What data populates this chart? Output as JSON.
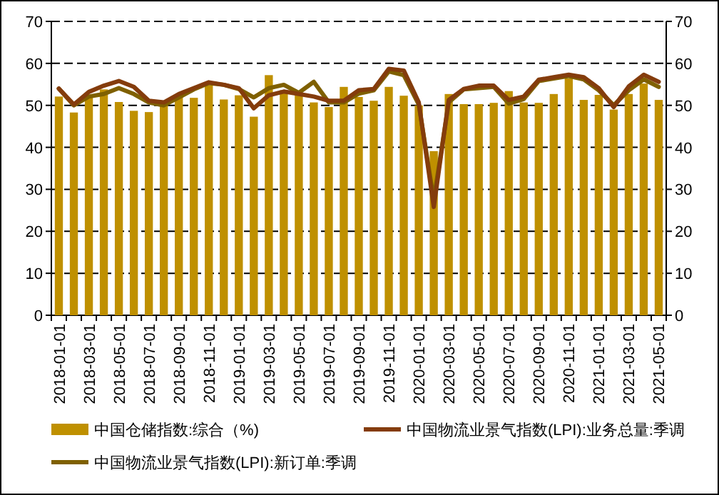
{
  "chart_data": {
    "type": "bar",
    "categories": [
      "2018-01-01",
      null,
      "2018-03-01",
      null,
      "2018-05-01",
      null,
      "2018-07-01",
      null,
      "2018-09-01",
      null,
      "2018-11-01",
      null,
      "2019-01-01",
      null,
      "2019-03-01",
      null,
      "2019-05-01",
      null,
      "2019-07-01",
      null,
      "2019-09-01",
      null,
      "2019-11-01",
      null,
      "2020-01-01",
      null,
      "2020-03-01",
      null,
      "2020-05-01",
      null,
      "2020-07-01",
      null,
      "2020-09-01",
      null,
      "2020-11-01",
      null,
      "2021-01-01",
      null,
      "2021-03-01",
      null,
      "2021-05-01"
    ],
    "series": [
      {
        "name": "中国仓储指数:综合（%)",
        "color": "#bf9000",
        "values": [
          52.1,
          48.3,
          52.3,
          53.8,
          50.8,
          48.7,
          48.4,
          50.3,
          52.0,
          51.8,
          54.8,
          51.4,
          52.4,
          47.3,
          57.2,
          53.6,
          52.4,
          50.7,
          49.6,
          54.4,
          52.0,
          51.1,
          54.4,
          52.3,
          50.0,
          39.1,
          52.7,
          50.3,
          50.3,
          50.6,
          53.4,
          50.7,
          50.6,
          52.7,
          56.4,
          51.3,
          52.5,
          49.0,
          52.7,
          55.2,
          51.3
        ]
      },
      {
        "name": "中国物流业景气指数(LPI):业务总量:季调",
        "type": "line",
        "color": "#843c0c",
        "values": [
          54.0,
          50.2,
          53.2,
          54.7,
          55.8,
          54.4,
          51.1,
          50.7,
          52.7,
          54.1,
          55.5,
          54.9,
          54.1,
          49.3,
          52.4,
          53.3,
          52.7,
          52.1,
          51.1,
          51.1,
          53.6,
          53.9,
          58.7,
          58.3,
          50.7,
          25.8,
          51.3,
          53.9,
          54.7,
          54.7,
          51.3,
          52.1,
          56.1,
          56.7,
          57.3,
          56.7,
          54.1,
          49.6,
          54.5,
          57.3,
          55.6
        ]
      },
      {
        "name": "中国物流业景气指数(LPI):新订单:季调",
        "type": "line",
        "color": "#7f6000",
        "values": [
          54.0,
          50.0,
          52.1,
          52.7,
          54.1,
          52.7,
          50.7,
          50.0,
          51.9,
          53.8,
          55.3,
          54.9,
          53.9,
          51.9,
          54.1,
          54.9,
          53.0,
          55.6,
          50.7,
          50.7,
          52.8,
          53.6,
          58.1,
          57.2,
          50.2,
          27.5,
          50.7,
          53.8,
          54.1,
          54.4,
          50.4,
          51.5,
          55.8,
          56.4,
          57.0,
          56.2,
          53.6,
          50.0,
          53.6,
          56.2,
          54.4
        ]
      }
    ],
    "ylim": [
      0,
      70
    ],
    "yticks": [
      0,
      10,
      20,
      30,
      40,
      50,
      60,
      70
    ],
    "y2lim": [
      0,
      70
    ],
    "y2ticks": [
      0,
      10,
      20,
      30,
      40,
      50,
      60,
      70
    ],
    "grid": "y",
    "legend": "bottom",
    "line_style": "solid",
    "marker": "none"
  }
}
